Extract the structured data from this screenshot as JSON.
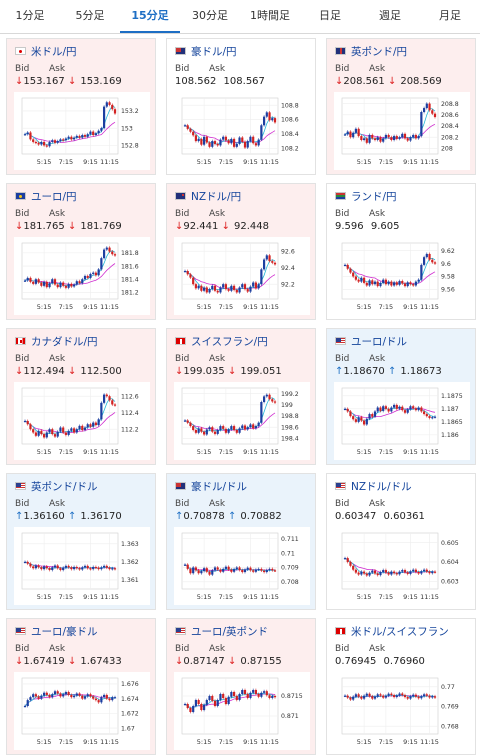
{
  "tabs": [
    {
      "label": "1分足",
      "active": false
    },
    {
      "label": "5分足",
      "active": false
    },
    {
      "label": "15分足",
      "active": true
    },
    {
      "label": "30分足",
      "active": false
    },
    {
      "label": "1時間足",
      "active": false
    },
    {
      "label": "日足",
      "active": false
    },
    {
      "label": "週足",
      "active": false
    },
    {
      "label": "月足",
      "active": false
    }
  ],
  "bid_label": "Bid",
  "ask_label": "Ask",
  "x_ticks": [
    "5:15",
    "7:15",
    "9:15",
    "11:15"
  ],
  "colors": {
    "up_candle": "#1c3ea0",
    "down_candle": "#d22222",
    "ma_magenta": "#d030d0",
    "ma_cyan": "#28b8d8"
  },
  "pairs": [
    {
      "name": "米ドル/円",
      "flag": "jp",
      "direction": "down",
      "bid": "153.167",
      "ask": "153.169",
      "y_ticks": [
        "153.2",
        "153",
        "152.8"
      ],
      "y_min": 152.7,
      "y_max": 153.35,
      "series": [
        152.93,
        152.95,
        152.87,
        152.84,
        152.83,
        152.81,
        152.84,
        152.8,
        152.79,
        152.84,
        152.86,
        152.83,
        152.85,
        152.87,
        152.86,
        152.88,
        152.9,
        152.87,
        152.89,
        152.91,
        152.89,
        152.92,
        152.9,
        152.93,
        152.96,
        152.92,
        152.94,
        152.97,
        153.0,
        153.25,
        153.3,
        153.27,
        153.22,
        153.17
      ]
    },
    {
      "name": "豪ドル/円",
      "flag": "au",
      "direction": "flat",
      "bid": "108.562",
      "ask": "108.567",
      "y_ticks": [
        "108.8",
        "108.6",
        "108.4",
        "108.2"
      ],
      "y_min": 108.12,
      "y_max": 108.9,
      "series": [
        108.52,
        108.47,
        108.43,
        108.38,
        108.3,
        108.33,
        108.25,
        108.36,
        108.28,
        108.22,
        108.3,
        108.26,
        108.24,
        108.32,
        108.36,
        108.31,
        108.27,
        108.33,
        108.22,
        108.26,
        108.35,
        108.29,
        108.21,
        108.3,
        108.36,
        108.27,
        108.24,
        108.32,
        108.52,
        108.64,
        108.7,
        108.59,
        108.62,
        108.56
      ]
    },
    {
      "name": "英ポンド/円",
      "flag": "gb",
      "direction": "down",
      "bid": "208.561",
      "ask": "208.569",
      "y_ticks": [
        "208.8",
        "208.6",
        "208.4",
        "208.2",
        "208"
      ],
      "y_min": 207.9,
      "y_max": 208.9,
      "series": [
        208.25,
        208.3,
        208.2,
        208.28,
        208.35,
        208.22,
        208.15,
        208.18,
        208.1,
        208.24,
        208.18,
        208.15,
        208.2,
        208.12,
        208.18,
        208.24,
        208.2,
        208.15,
        208.22,
        208.17,
        208.2,
        208.26,
        208.18,
        208.14,
        208.2,
        208.24,
        208.18,
        208.22,
        208.65,
        208.72,
        208.8,
        208.68,
        208.62,
        208.56
      ]
    },
    {
      "name": "ユーロ/円",
      "flag": "eu",
      "direction": "down",
      "bid": "181.765",
      "ask": "181.769",
      "y_ticks": [
        "181.8",
        "181.6",
        "181.4",
        "181.2"
      ],
      "y_min": 181.1,
      "y_max": 181.95,
      "series": [
        181.38,
        181.42,
        181.36,
        181.33,
        181.4,
        181.35,
        181.3,
        181.36,
        181.28,
        181.34,
        181.4,
        181.32,
        181.28,
        181.35,
        181.3,
        181.27,
        181.33,
        181.29,
        181.32,
        181.37,
        181.34,
        181.4,
        181.45,
        181.42,
        181.48,
        181.5,
        181.46,
        181.55,
        181.72,
        181.85,
        181.88,
        181.82,
        181.78,
        181.76
      ]
    },
    {
      "name": "NZドル/円",
      "flag": "nz",
      "direction": "down",
      "bid": "92.441",
      "ask": "92.448",
      "y_ticks": [
        "92.6",
        "92.4",
        "92.2"
      ],
      "y_min": 92.02,
      "y_max": 92.7,
      "series": [
        92.36,
        92.32,
        92.28,
        92.2,
        92.15,
        92.18,
        92.12,
        92.16,
        92.1,
        92.14,
        92.18,
        92.12,
        92.1,
        92.16,
        92.2,
        92.14,
        92.12,
        92.18,
        92.13,
        92.1,
        92.16,
        92.2,
        92.14,
        92.11,
        92.17,
        92.22,
        92.15,
        92.2,
        92.38,
        92.5,
        92.55,
        92.48,
        92.46,
        92.44
      ]
    },
    {
      "name": "ランド/円",
      "flag": "za",
      "direction": "flat",
      "bid": "9.596",
      "ask": "9.605",
      "y_ticks": [
        "9.62",
        "9.6",
        "9.58",
        "9.56"
      ],
      "y_min": 9.545,
      "y_max": 9.632,
      "series": [
        9.598,
        9.592,
        9.586,
        9.58,
        9.575,
        9.572,
        9.578,
        9.57,
        9.566,
        9.574,
        9.568,
        9.572,
        9.565,
        9.57,
        9.575,
        9.568,
        9.572,
        9.566,
        9.571,
        9.567,
        9.573,
        9.569,
        9.565,
        9.571,
        9.568,
        9.566,
        9.572,
        9.575,
        9.598,
        9.61,
        9.615,
        9.606,
        9.602,
        9.6
      ]
    },
    {
      "name": "カナダドル/円",
      "flag": "ca",
      "direction": "down",
      "bid": "112.494",
      "ask": "112.500",
      "y_ticks": [
        "112.6",
        "112.4",
        "112.2"
      ],
      "y_min": 112.02,
      "y_max": 112.7,
      "series": [
        112.3,
        112.26,
        112.2,
        112.16,
        112.12,
        112.18,
        112.14,
        112.1,
        112.16,
        112.2,
        112.14,
        112.11,
        112.17,
        112.22,
        112.16,
        112.13,
        112.18,
        112.21,
        112.16,
        112.2,
        112.24,
        112.19,
        112.22,
        112.26,
        112.23,
        112.28,
        112.25,
        112.32,
        112.52,
        112.62,
        112.6,
        112.55,
        112.5,
        112.49
      ]
    },
    {
      "name": "スイスフラン/円",
      "flag": "ch",
      "direction": "down",
      "bid": "199.035",
      "ask": "199.051",
      "y_ticks": [
        "199.2",
        "199",
        "198.8",
        "198.6",
        "198.4"
      ],
      "y_min": 198.3,
      "y_max": 199.3,
      "series": [
        198.72,
        198.68,
        198.62,
        198.55,
        198.5,
        198.58,
        198.52,
        198.47,
        198.56,
        198.6,
        198.52,
        198.48,
        198.55,
        198.62,
        198.57,
        198.5,
        198.56,
        198.62,
        198.55,
        198.5,
        198.58,
        198.63,
        198.56,
        198.6,
        198.65,
        198.58,
        198.62,
        198.68,
        199.05,
        199.15,
        199.18,
        199.1,
        199.06,
        199.04
      ]
    },
    {
      "name": "ユーロ/ドル",
      "flag": "us",
      "direction": "up",
      "bid": "1.18670",
      "ask": "1.18673",
      "y_ticks": [
        "1.1875",
        "1.187",
        "1.1865",
        "1.186"
      ],
      "y_min": 1.18565,
      "y_max": 1.1878,
      "series": [
        1.187,
        1.1869,
        1.18672,
        1.1866,
        1.1865,
        1.18668,
        1.18655,
        1.1864,
        1.18662,
        1.1868,
        1.1867,
        1.1869,
        1.18705,
        1.18692,
        1.1871,
        1.187,
        1.1869,
        1.18705,
        1.18715,
        1.187,
        1.18708,
        1.18695,
        1.18685,
        1.18698,
        1.1871,
        1.18702,
        1.18695,
        1.18705,
        1.1869,
        1.1868,
        1.18672,
        1.18665,
        1.18668,
        1.1867
      ]
    },
    {
      "name": "英ポンド/ドル",
      "flag": "us",
      "direction": "up",
      "bid": "1.36160",
      "ask": "1.36170",
      "y_ticks": [
        "1.363",
        "1.362",
        "1.361"
      ],
      "y_min": 1.3605,
      "y_max": 1.3636,
      "series": [
        1.362,
        1.3619,
        1.36175,
        1.36165,
        1.3618,
        1.3617,
        1.3616,
        1.36175,
        1.36165,
        1.36155,
        1.3617,
        1.3618,
        1.36165,
        1.36155,
        1.36168,
        1.36178,
        1.3617,
        1.3616,
        1.36172,
        1.36165,
        1.36158,
        1.3617,
        1.36178,
        1.36165,
        1.3616,
        1.36172,
        1.36168,
        1.3616,
        1.3617,
        1.36178,
        1.36168,
        1.3616,
        1.36165,
        1.3616
      ]
    },
    {
      "name": "豪ドル/ドル",
      "flag": "au",
      "direction": "up",
      "bid": "0.70878",
      "ask": "0.70882",
      "y_ticks": [
        "0.711",
        "0.71",
        "0.709",
        "0.708"
      ],
      "y_min": 0.7075,
      "y_max": 0.7114,
      "series": [
        0.7092,
        0.7089,
        0.7086,
        0.709,
        0.7088,
        0.7086,
        0.70875,
        0.70895,
        0.7087,
        0.7085,
        0.7088,
        0.709,
        0.70885,
        0.7087,
        0.7089,
        0.70905,
        0.70885,
        0.7087,
        0.70888,
        0.709,
        0.70882,
        0.70868,
        0.70885,
        0.70898,
        0.7088,
        0.7087,
        0.70885,
        0.7089,
        0.70878,
        0.70868,
        0.70882,
        0.7089,
        0.7088,
        0.70878
      ]
    },
    {
      "name": "NZドル/ドル",
      "flag": "us",
      "direction": "flat",
      "bid": "0.60347",
      "ask": "0.60361",
      "y_ticks": [
        "0.605",
        "0.604",
        "0.603"
      ],
      "y_min": 0.6026,
      "y_max": 0.6055,
      "series": [
        0.6042,
        0.604,
        0.6038,
        0.6036,
        0.60345,
        0.60335,
        0.6035,
        0.6034,
        0.6033,
        0.60345,
        0.60355,
        0.6034,
        0.60332,
        0.60348,
        0.60358,
        0.60345,
        0.60335,
        0.6035,
        0.60342,
        0.60336,
        0.6035,
        0.60358,
        0.60346,
        0.60338,
        0.60352,
        0.6036,
        0.60348,
        0.6034,
        0.60352,
        0.6036,
        0.6035,
        0.60342,
        0.6035,
        0.60347
      ]
    },
    {
      "name": "ユーロ/豪ドル",
      "flag": "us",
      "direction": "down",
      "bid": "1.67419",
      "ask": "1.67433",
      "y_ticks": [
        "1.676",
        "1.674",
        "1.672",
        "1.67"
      ],
      "y_min": 1.6692,
      "y_max": 1.6768,
      "series": [
        1.673,
        1.6738,
        1.6742,
        1.6746,
        1.6743,
        1.674,
        1.6744,
        1.6748,
        1.6745,
        1.6742,
        1.6746,
        1.675,
        1.6747,
        1.6743,
        1.6746,
        1.6749,
        1.6745,
        1.6742,
        1.6744,
        1.6747,
        1.6744,
        1.674,
        1.6743,
        1.6746,
        1.6743,
        1.674,
        1.6738,
        1.6735,
        1.6742,
        1.6745,
        1.674,
        1.6738,
        1.6742,
        1.6742
      ]
    },
    {
      "name": "ユーロ/英ポンド",
      "flag": "us",
      "direction": "down",
      "bid": "0.87147",
      "ask": "0.87155",
      "y_ticks": [
        "0.8715",
        "0.871"
      ],
      "y_min": 0.87055,
      "y_max": 0.87195,
      "series": [
        0.8713,
        0.8712,
        0.8711,
        0.87125,
        0.8714,
        0.8713,
        0.87115,
        0.87128,
        0.8714,
        0.8715,
        0.87138,
        0.87125,
        0.8714,
        0.87155,
        0.87145,
        0.8713,
        0.87148,
        0.8716,
        0.8715,
        0.8714,
        0.87155,
        0.87165,
        0.87155,
        0.87145,
        0.87158,
        0.87165,
        0.87155,
        0.87148,
        0.87158,
        0.87162,
        0.87152,
        0.87145,
        0.8715,
        0.87147
      ]
    },
    {
      "name": "米ドル/スイスフラン",
      "flag": "ch",
      "direction": "flat",
      "bid": "0.76945",
      "ask": "0.76960",
      "y_ticks": [
        "0.77",
        "0.769",
        "0.768"
      ],
      "y_min": 0.7676,
      "y_max": 0.77045,
      "series": [
        0.76955,
        0.76945,
        0.76935,
        0.7695,
        0.76962,
        0.7695,
        0.7694,
        0.76955,
        0.76965,
        0.76952,
        0.7694,
        0.7695,
        0.76962,
        0.76955,
        0.76945,
        0.76955,
        0.76965,
        0.76958,
        0.76948,
        0.76956,
        0.76966,
        0.76958,
        0.76948,
        0.7694,
        0.76952,
        0.7696,
        0.7695,
        0.76942,
        0.76952,
        0.76962,
        0.76955,
        0.76946,
        0.76952,
        0.76945
      ]
    }
  ]
}
